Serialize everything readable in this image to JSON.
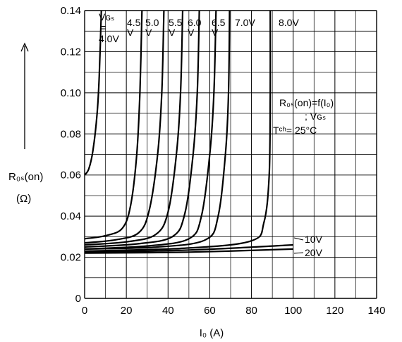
{
  "chart_data": {
    "type": "line",
    "xlabel": "I₀ (A)",
    "ylabel": "R₀ₛ(on)",
    "ylabel_unit": "(Ω)",
    "xlim": [
      0,
      140
    ],
    "ylim": [
      0,
      0.14
    ],
    "x_ticks": [
      "0",
      "20",
      "40",
      "60",
      "80",
      "100",
      "120",
      "140"
    ],
    "y_ticks": [
      "0",
      "0.02",
      "0.04",
      "0.06",
      "0.08",
      "0.10",
      "0.12",
      "0.14"
    ],
    "grid": true,
    "annotation": {
      "line1": "R₀ₛ(on)=f(I₀)",
      "line2": "; Vɢₛ",
      "line3": "Tᶜʰ= 25°C"
    },
    "vgs_header": [
      "Vɢₛ",
      "="
    ],
    "series": [
      {
        "name": "4.0V",
        "label_lines": [
          "4.0V"
        ],
        "x": [
          0,
          2,
          4,
          6,
          7,
          8
        ],
        "y": [
          0.06,
          0.063,
          0.072,
          0.09,
          0.108,
          0.14
        ]
      },
      {
        "name": "4.5V",
        "label_lines": [
          "4.5",
          "V"
        ],
        "x": [
          0,
          10,
          18,
          22,
          25,
          26.5,
          27.5
        ],
        "y": [
          0.029,
          0.0305,
          0.034,
          0.045,
          0.07,
          0.1,
          0.14
        ]
      },
      {
        "name": "5.0V",
        "label_lines": [
          "5.0",
          "V"
        ],
        "x": [
          0,
          15,
          26,
          31,
          35,
          37,
          38
        ],
        "y": [
          0.027,
          0.0285,
          0.032,
          0.043,
          0.07,
          0.1,
          0.14
        ]
      },
      {
        "name": "5.5V",
        "label_lines": [
          "5.5",
          "V"
        ],
        "x": [
          0,
          20,
          34,
          40,
          44,
          46,
          47
        ],
        "y": [
          0.026,
          0.0275,
          0.031,
          0.042,
          0.07,
          0.1,
          0.14
        ]
      },
      {
        "name": "6.0V",
        "label_lines": [
          "6.0",
          "V"
        ],
        "x": [
          0,
          25,
          42,
          48,
          52,
          54,
          55
        ],
        "y": [
          0.025,
          0.0265,
          0.03,
          0.041,
          0.07,
          0.1,
          0.14
        ]
      },
      {
        "name": "6.5V",
        "label_lines": [
          "6.5",
          "V"
        ],
        "x": [
          0,
          30,
          50,
          56,
          60,
          62,
          63
        ],
        "y": [
          0.024,
          0.0255,
          0.029,
          0.04,
          0.07,
          0.1,
          0.14
        ]
      },
      {
        "name": "7.0V",
        "label_lines": [
          "7.0V"
        ],
        "x": [
          0,
          35,
          58,
          64,
          67.5,
          69,
          69.5
        ],
        "y": [
          0.024,
          0.025,
          0.0285,
          0.04,
          0.07,
          0.1,
          0.14
        ]
      },
      {
        "name": "8.0V",
        "label_lines": [
          "8.0V"
        ],
        "x": [
          0,
          50,
          80,
          86,
          88.5,
          89,
          89
        ],
        "y": [
          0.023,
          0.0245,
          0.028,
          0.037,
          0.06,
          0.1,
          0.14
        ]
      },
      {
        "name": "10V",
        "label_lines": [
          "10V"
        ],
        "x": [
          0,
          50,
          100
        ],
        "y": [
          0.0225,
          0.0235,
          0.026
        ]
      },
      {
        "name": "20V",
        "label_lines": [
          "20V"
        ],
        "x": [
          0,
          50,
          100
        ],
        "y": [
          0.022,
          0.0225,
          0.024
        ]
      }
    ]
  }
}
